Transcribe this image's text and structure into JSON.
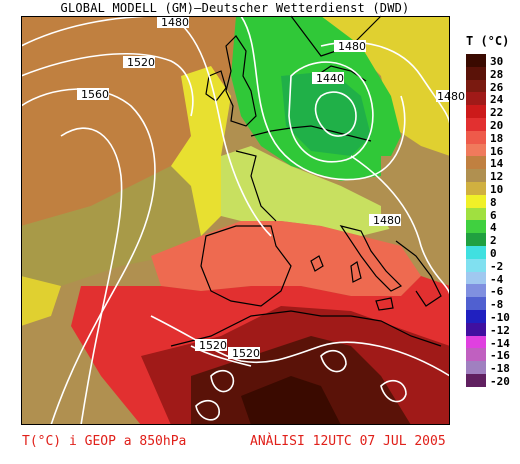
{
  "header": {
    "title": "GLOBAL MODELL (GM)—Deutscher Wetterdienst (DWD)"
  },
  "legend": {
    "title": "T (°C)",
    "levels": [
      {
        "label": "30",
        "color": "#3a0a00"
      },
      {
        "label": "28",
        "color": "#5a1208"
      },
      {
        "label": "26",
        "color": "#7a1a10"
      },
      {
        "label": "24",
        "color": "#a01a18"
      },
      {
        "label": "22",
        "color": "#cc1a1a"
      },
      {
        "label": "20",
        "color": "#e23030"
      },
      {
        "label": "18",
        "color": "#ee5a4a"
      },
      {
        "label": "16",
        "color": "#f07a5c"
      },
      {
        "label": "14",
        "color": "#c08040"
      },
      {
        "label": "12",
        "color": "#b09050"
      },
      {
        "label": "10",
        "color": "#d0b040"
      },
      {
        "label": "8",
        "color": "#f0f028"
      },
      {
        "label": "6",
        "color": "#a0e040"
      },
      {
        "label": "4",
        "color": "#40d040"
      },
      {
        "label": "2",
        "color": "#20a040"
      },
      {
        "label": "0",
        "color": "#40e0e0"
      },
      {
        "label": "-2",
        "color": "#80e0f0"
      },
      {
        "label": "-4",
        "color": "#a0c8f0"
      },
      {
        "label": "-6",
        "color": "#8090e0"
      },
      {
        "label": "-8",
        "color": "#5060d0"
      },
      {
        "label": "-10",
        "color": "#2020c0"
      },
      {
        "label": "-12",
        "color": "#4010a0"
      },
      {
        "label": "-14",
        "color": "#e040e0"
      },
      {
        "label": "-16",
        "color": "#c060c0"
      },
      {
        "label": "-18",
        "color": "#a080c0"
      },
      {
        "label": "-20",
        "color": "#602060"
      }
    ]
  },
  "contours": {
    "labels": [
      "1480",
      "1520",
      "1560",
      "1480",
      "1440",
      "1480",
      "1480",
      "1520",
      "1520"
    ]
  },
  "footer": {
    "variable": "T(°C) i GEOP a 850hPa",
    "analysis": "ANÀLISI 12UTC 07 JUL 2005"
  },
  "colors": {
    "land_outline": "#000000",
    "contour": "#ffffff",
    "footer_text": "#e0201a"
  }
}
